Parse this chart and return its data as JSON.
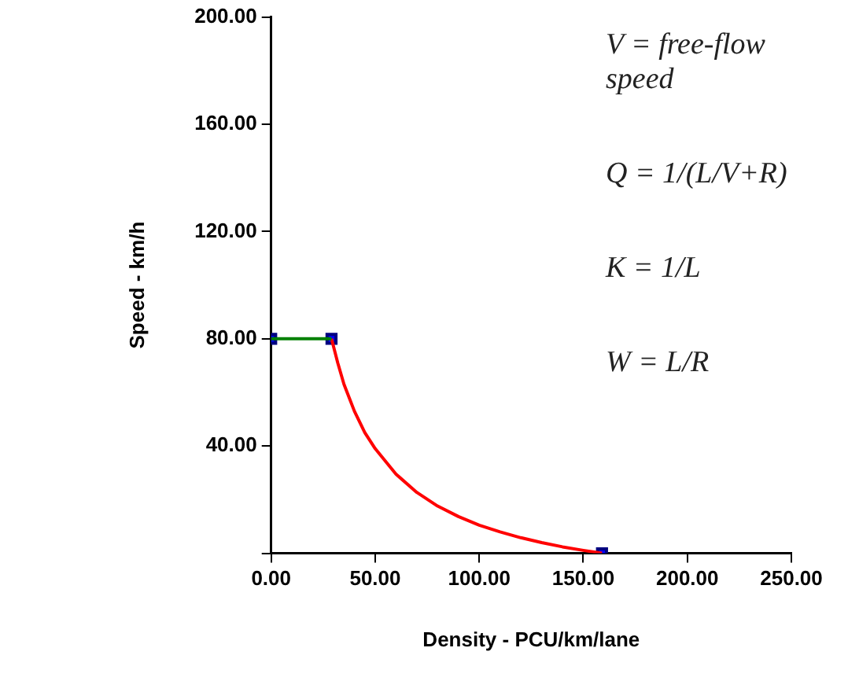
{
  "chart_data": {
    "type": "line",
    "xlabel": "Density - PCU/km/lane",
    "ylabel": "Speed - km/h",
    "xlim": [
      0,
      250
    ],
    "ylim": [
      0,
      200
    ],
    "xticks": [
      {
        "value": 0,
        "label": "0.00"
      },
      {
        "value": 50,
        "label": "50.00"
      },
      {
        "value": 100,
        "label": "100.00"
      },
      {
        "value": 150,
        "label": "150.00"
      },
      {
        "value": 200,
        "label": "200.00"
      },
      {
        "value": 250,
        "label": "250.00"
      }
    ],
    "yticks": [
      {
        "value": 0,
        "label": null
      },
      {
        "value": 40,
        "label": "40.00"
      },
      {
        "value": 80,
        "label": "80.00"
      },
      {
        "value": 120,
        "label": "120.00"
      },
      {
        "value": 160,
        "label": "160.00"
      },
      {
        "value": 200,
        "label": "200.00"
      }
    ],
    "grid": false,
    "legend": false,
    "series": [
      {
        "color": "#008000",
        "marker": "none",
        "x": [
          0,
          29
        ],
        "values": [
          80,
          80
        ]
      },
      {
        "color": "#ff0000",
        "marker": "none",
        "x": [
          29,
          32,
          35,
          40,
          45,
          50,
          60,
          70,
          80,
          90,
          100,
          110,
          120,
          130,
          140,
          150,
          159
        ],
        "values": [
          80,
          71,
          63,
          53,
          45,
          39,
          29.5,
          22.7,
          17.6,
          13.7,
          10.5,
          8,
          5.8,
          4,
          2.4,
          1.1,
          0
        ]
      },
      {
        "type": "scatter",
        "color": "#000080",
        "marker": "square",
        "x": [
          0,
          29,
          159
        ],
        "values": [
          80,
          80,
          0
        ]
      }
    ],
    "annotations": [
      "V = free-flow speed",
      "Q = 1/(L/V+R)",
      "K = 1/L",
      "W = L/R"
    ]
  }
}
